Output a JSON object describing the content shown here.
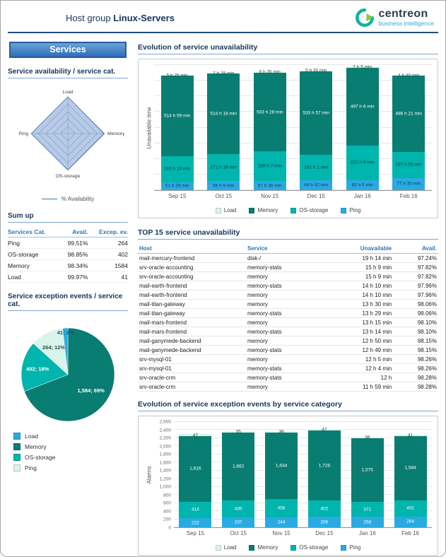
{
  "page": {
    "title_prefix": "Host group",
    "title_bold": "Linux-Servers"
  },
  "logo": {
    "name": "centreon",
    "tagline": "business intelligence"
  },
  "colors": {
    "accent_blue": "#2e75b6",
    "navy": "#17365d",
    "ping_blue": "#29abe2",
    "os_teal": "#00b5ad",
    "memory_teal": "#0a7d72",
    "load_mint": "#d9f4ea"
  },
  "sidebar": {
    "services_title": "Services",
    "availability": {
      "title": "Service availability / service cat."
    },
    "sumup": {
      "title": "Sum up",
      "columns": [
        "Services Cat.",
        "Avail.",
        "Excep. ev."
      ],
      "rows": [
        {
          "cat": "Ping",
          "avail": "99.51%",
          "events": "264"
        },
        {
          "cat": "OS-storage",
          "avail": "98.85%",
          "events": "402"
        },
        {
          "cat": "Memory",
          "avail": "98.34%",
          "events": "1584"
        },
        {
          "cat": "Load",
          "avail": "99.97%",
          "events": "41"
        }
      ]
    },
    "exceptions": {
      "title": "Service exception events / service cat."
    }
  },
  "main": {
    "sections": {
      "unavailability_title": "Evolution of service unavailability",
      "top15_title": "TOP 15 service unavailability",
      "exceptions_title": "Evolution of service exception events by service category"
    },
    "top15": {
      "columns": [
        "Host",
        "Service",
        "Unavailable",
        "Avail."
      ],
      "rows": [
        [
          "mail-mercury-frontend",
          "disk-/",
          "19 h 14 min",
          "97.24%"
        ],
        [
          "srv-oracle-accounting",
          "memory-stats",
          "15 h 9 min",
          "97.82%"
        ],
        [
          "srv-oracle-accounting",
          "memory",
          "15 h 9 min",
          "97.82%"
        ],
        [
          "mail-earth-frontend",
          "memory-stats",
          "14 h 10 min",
          "97.96%"
        ],
        [
          "mail-earth-frontend",
          "memory",
          "14 h 10 min",
          "97.96%"
        ],
        [
          "mail-titan-gateway",
          "memory",
          "13 h 30 min",
          "98.06%"
        ],
        [
          "mail-titan-gateway",
          "memory-stats",
          "13 h 29 min",
          "98.06%"
        ],
        [
          "mail-mars-frontend",
          "memory",
          "13 h 15 min",
          "98.10%"
        ],
        [
          "mail-mars-frontend",
          "memory-stats",
          "13 h 14 min",
          "98.10%"
        ],
        [
          "mail-ganymede-backend",
          "memory",
          "12 h 50 min",
          "98.15%"
        ],
        [
          "mail-ganymede-backend",
          "memory-stats",
          "12 h 49 min",
          "98.15%"
        ],
        [
          "srv-mysql-01",
          "memory",
          "12 h 5 min",
          "98.26%"
        ],
        [
          "srv-mysql-01",
          "memory-stats",
          "12 h 4 min",
          "98.26%"
        ],
        [
          "srv-oracle-crm",
          "memory-stats",
          "12 h",
          "98.28%"
        ],
        [
          "srv-oracle-crm",
          "memory",
          "11 h 59 min",
          "98.28%"
        ]
      ]
    }
  },
  "chart_data": [
    {
      "id": "availability-radar",
      "type": "radar",
      "axes": [
        "Load",
        "Memory",
        "OS-storage",
        "Ping"
      ],
      "values": [
        99.97,
        98.34,
        98.85,
        99.51
      ],
      "legend_label": "% Availability",
      "fill": "#b7cbe8",
      "stroke": "#4472a8"
    },
    {
      "id": "exception-events-pie",
      "type": "pie",
      "total": 2291,
      "slices": [
        {
          "label": "Memory",
          "value": 1584,
          "display": "1,584; 69%",
          "color": "#0a7d72",
          "label_color": "#ffffff",
          "label_radius": 0.6
        },
        {
          "label": "OS-storage",
          "value": 402,
          "display": "402; 18%",
          "color": "#00b5ad",
          "label_color": "#ffffff",
          "label_radius": 0.66
        },
        {
          "label": "Ping",
          "value": 264,
          "display": "264; 12%",
          "color": "#d9f4ea",
          "label_color": "#2a4a44",
          "label_radius": 0.66
        },
        {
          "label": "Load",
          "value": 41,
          "display": "41; 2%",
          "color": "#29abe2",
          "label_color": "#1f4e79",
          "label_radius": 0.9
        }
      ],
      "legend": [
        {
          "label": "Load",
          "color": "#29abe2"
        },
        {
          "label": "Memory",
          "color": "#0a7d72"
        },
        {
          "label": "OS-storage",
          "color": "#00b5ad"
        },
        {
          "label": "Ping",
          "color": "#d9f4ea"
        }
      ]
    },
    {
      "id": "service-unavailability",
      "type": "bar",
      "stacked": true,
      "title": "Evolution of service unavailability",
      "ylabel": "Unavailable time",
      "categories": [
        "Sep 15",
        "Oct 15",
        "Nov 15",
        "Dec 15",
        "Jan 16",
        "Feb 16"
      ],
      "ylim": [
        0,
        800
      ],
      "ytick_step": 100,
      "show_ticks": false,
      "legend_order": [
        "Load",
        "Memory",
        "OS-storage",
        "Ping"
      ],
      "series": [
        {
          "name": "Ping",
          "color": "#29abe2",
          "label_color": "#0d3b5c",
          "values": [
            51.48,
            58.15,
            57.6,
            64.7,
            63.08,
            77.5
          ],
          "labels": [
            "51 h 29 min",
            "58 h 9 min",
            "57 h 36 min",
            "64 h 42 min",
            "63 h 5 min",
            "77 h 30 min"
          ]
        },
        {
          "name": "OS-storage",
          "color": "#00b5ad",
          "label_color": "#063d38",
          "values": [
            165.4,
            171.27,
            189.12,
            161.02,
            222.15,
            167.92
          ],
          "labels": [
            "165 h 24 min",
            "171 h 16 min",
            "189 h 7 min",
            "161 h 1 min",
            "222 h 9 min",
            "167 h 55 min"
          ]
        },
        {
          "name": "Memory",
          "color": "#0a7d72",
          "label_color": "#ffffff",
          "values": [
            514.98,
            514.3,
            503.47,
            533.95,
            497.1,
            486.35
          ],
          "labels": [
            "514 h 59 min",
            "514 h 18 min",
            "503 h 28 min",
            "533 h 57 min",
            "497 h 6 min",
            "486 h 21 min"
          ]
        },
        {
          "name": "Load",
          "color": "#d9f4ea",
          "label_color": "#2a4a44",
          "values": [
            5.42,
            7.48,
            6.58,
            5.5,
            7.08,
            4.67
          ],
          "labels": [
            "5 h 25 min",
            "7 h 29 min",
            "6 h 35 min",
            "5 h 30 min",
            "7 h 5 min",
            "4 h 40 min"
          ]
        }
      ]
    },
    {
      "id": "service-exception-events",
      "type": "bar",
      "stacked": true,
      "title": "Evolution of service exception events by service category",
      "ylabel": "Alarms",
      "categories": [
        "Sep 15",
        "Oct 15",
        "Nov 15",
        "Dec 15",
        "Jan 16",
        "Feb 16"
      ],
      "ylim": [
        0,
        2600
      ],
      "ytick_step": 200,
      "show_ticks": true,
      "legend_order": [
        "Load",
        "Memory",
        "OS-storage",
        "Ping"
      ],
      "series": [
        {
          "name": "Ping",
          "color": "#29abe2",
          "label_color": "#ffffff",
          "values": [
            222,
            237,
            244,
            256,
            258,
            264
          ],
          "labels": [
            "222",
            "237",
            "244",
            "256",
            "258",
            "264"
          ]
        },
        {
          "name": "OS-storage",
          "color": "#00b5ad",
          "label_color": "#ffffff",
          "values": [
            414,
            435,
            458,
            402,
            371,
            402
          ],
          "labels": [
            "414",
            "435",
            "458",
            "402",
            "371",
            "402"
          ]
        },
        {
          "name": "Memory",
          "color": "#0a7d72",
          "label_color": "#ffffff",
          "values": [
            1616,
            1662,
            1634,
            1728,
            1575,
            1584
          ],
          "labels": [
            "1,616",
            "1,662",
            "1,634",
            "1,728",
            "1,575",
            "1,584"
          ]
        },
        {
          "name": "Load",
          "color": "#d9f4ea",
          "label_color": "#2a4a44",
          "values": [
            47,
            35,
            38,
            47,
            36,
            41
          ],
          "labels": [
            "47",
            "35",
            "38",
            "47",
            "36",
            "41"
          ]
        }
      ]
    }
  ]
}
